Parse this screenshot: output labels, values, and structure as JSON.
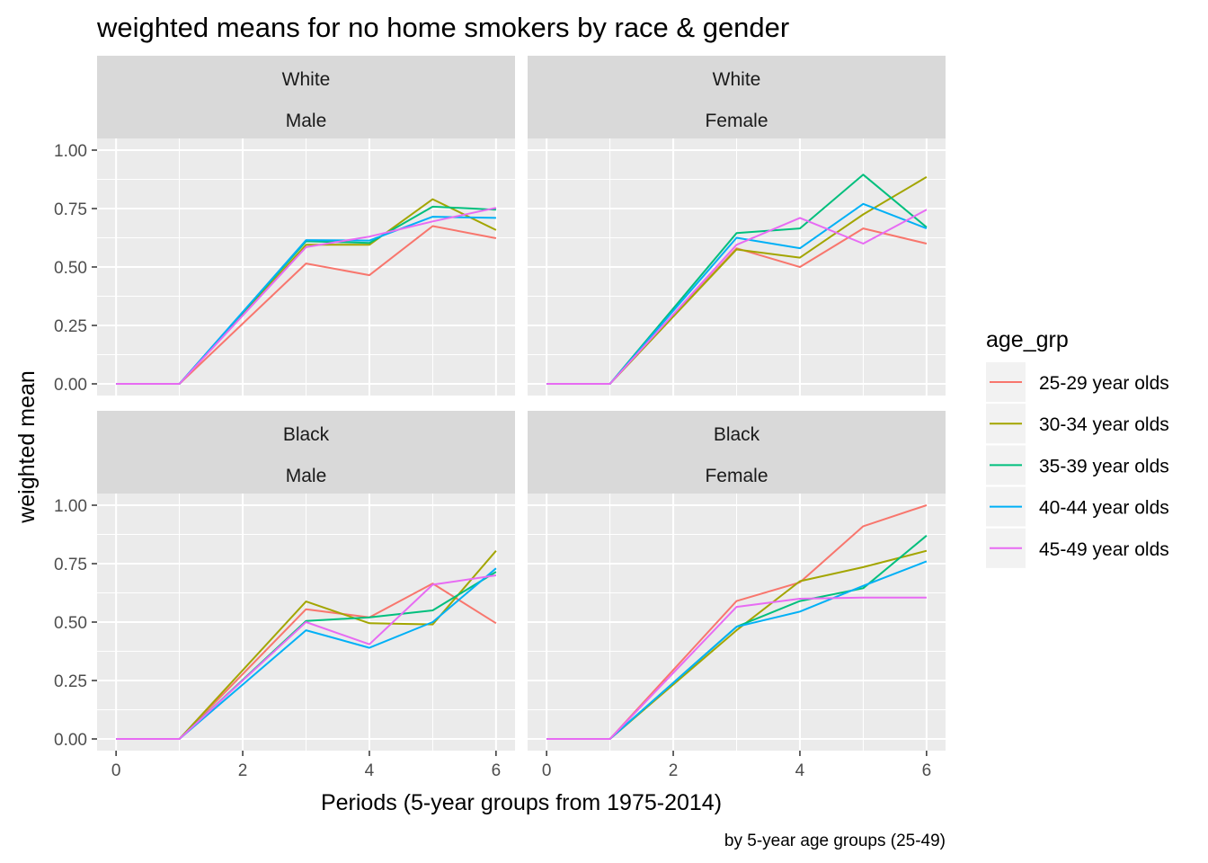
{
  "chart_data": {
    "type": "line",
    "title": "weighted means for no home smokers by race & gender",
    "xlabel": "Periods (5-year groups from 1975-2014)",
    "ylabel": "weighted mean",
    "caption": "by 5-year age groups (25-49)",
    "xlim": [
      0,
      6
    ],
    "ylim": [
      0,
      1
    ],
    "x_ticks": [
      0,
      2,
      4,
      6
    ],
    "x_tick_labels": [
      "0",
      "2",
      "4",
      "6"
    ],
    "y_ticks": [
      0,
      0.25,
      0.5,
      0.75,
      1
    ],
    "y_tick_labels": [
      "0.00",
      "0.25",
      "0.50",
      "0.75",
      "1.00"
    ],
    "grid": true,
    "legend": {
      "title": "age_grp",
      "position": "right",
      "entries": [
        {
          "label": "25-29 year olds",
          "color": "#F8766D"
        },
        {
          "label": "30-34 year olds",
          "color": "#A3A500"
        },
        {
          "label": "35-39 year olds",
          "color": "#00BF7D"
        },
        {
          "label": "40-44 year olds",
          "color": "#00B0F6"
        },
        {
          "label": "45-49 year olds",
          "color": "#E76BF3"
        }
      ]
    },
    "x": [
      0,
      1,
      3,
      4,
      5,
      6
    ],
    "panels": [
      {
        "row": 0,
        "col": 0,
        "race": "White",
        "gender": "Male",
        "series": [
          {
            "name": "25-29 year olds",
            "values": [
              0,
              0,
              0.515,
              0.465,
              0.675,
              0.623
            ]
          },
          {
            "name": "30-34 year olds",
            "values": [
              0,
              0,
              0.595,
              0.595,
              0.79,
              0.658
            ]
          },
          {
            "name": "35-39 year olds",
            "values": [
              0,
              0,
              0.61,
              0.603,
              0.758,
              0.745
            ]
          },
          {
            "name": "40-44 year olds",
            "values": [
              0,
              0,
              0.615,
              0.613,
              0.715,
              0.71
            ]
          },
          {
            "name": "45-49 year olds",
            "values": [
              0,
              0,
              0.585,
              0.63,
              0.695,
              0.753
            ]
          }
        ]
      },
      {
        "row": 0,
        "col": 1,
        "race": "White",
        "gender": "Female",
        "series": [
          {
            "name": "25-29 year olds",
            "values": [
              0,
              0,
              0.58,
              0.5,
              0.665,
              0.6
            ]
          },
          {
            "name": "30-34 year olds",
            "values": [
              0,
              0,
              0.575,
              0.54,
              0.725,
              0.885
            ]
          },
          {
            "name": "35-39 year olds",
            "values": [
              0,
              0,
              0.645,
              0.665,
              0.895,
              0.67
            ]
          },
          {
            "name": "40-44 year olds",
            "values": [
              0,
              0,
              0.625,
              0.58,
              0.77,
              0.665
            ]
          },
          {
            "name": "45-49 year olds",
            "values": [
              0,
              0,
              0.595,
              0.71,
              0.6,
              0.745
            ]
          }
        ]
      },
      {
        "row": 1,
        "col": 0,
        "race": "Black",
        "gender": "Male",
        "series": [
          {
            "name": "25-29 year olds",
            "values": [
              0,
              0,
              0.555,
              0.52,
              0.665,
              0.495
            ]
          },
          {
            "name": "30-34 year olds",
            "values": [
              0,
              0,
              0.588,
              0.495,
              0.49,
              0.805
            ]
          },
          {
            "name": "35-39 year olds",
            "values": [
              0,
              0,
              0.505,
              0.52,
              0.55,
              0.715
            ]
          },
          {
            "name": "40-44 year olds",
            "values": [
              0,
              0,
              0.465,
              0.39,
              0.5,
              0.73
            ]
          },
          {
            "name": "45-49 year olds",
            "values": [
              0,
              0,
              0.5,
              0.405,
              0.66,
              0.7
            ]
          }
        ]
      },
      {
        "row": 1,
        "col": 1,
        "race": "Black",
        "gender": "Female",
        "series": [
          {
            "name": "25-29 year olds",
            "values": [
              0,
              0,
              0.59,
              0.67,
              0.91,
              1.0
            ]
          },
          {
            "name": "30-34 year olds",
            "values": [
              0,
              0,
              0.465,
              0.675,
              0.735,
              0.805
            ]
          },
          {
            "name": "35-39 year olds",
            "values": [
              0,
              0,
              0.48,
              0.59,
              0.645,
              0.87
            ]
          },
          {
            "name": "40-44 year olds",
            "values": [
              0,
              0,
              0.48,
              0.545,
              0.655,
              0.76
            ]
          },
          {
            "name": "45-49 year olds",
            "values": [
              0,
              0,
              0.565,
              0.6,
              0.605,
              0.605
            ]
          }
        ]
      }
    ]
  }
}
